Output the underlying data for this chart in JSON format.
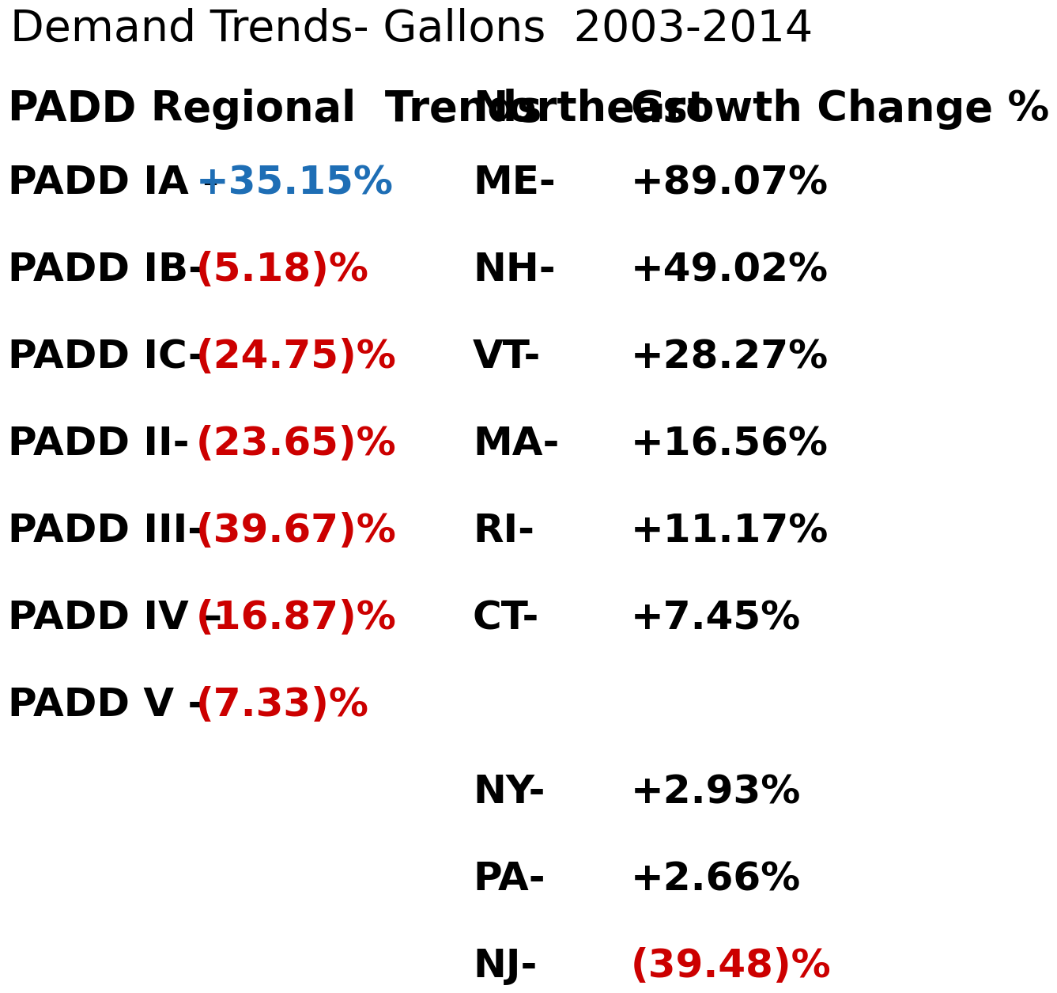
{
  "title": "Demand Trends- Gallons  2003-2014",
  "bg_color": "#ffffff",
  "left_header": "PADD Regional  Trends",
  "padd_rows": [
    {
      "label": "PADD IA - ",
      "value": "+35.15%",
      "value_color": "#1e6eb5"
    },
    {
      "label": "PADD IB-   ",
      "value": "(5.18)%",
      "value_color": "#cc0000"
    },
    {
      "label": "PADD IC-   ",
      "value": "(24.75)%",
      "value_color": "#cc0000"
    },
    {
      "label": "PADD II-   ",
      "value": "(23.65)%",
      "value_color": "#cc0000"
    },
    {
      "label": "PADD III-  ",
      "value": "(39.67)%",
      "value_color": "#cc0000"
    },
    {
      "label": "PADD IV – ",
      "value": "(16.87)%",
      "value_color": "#cc0000"
    },
    {
      "label": "PADD V -   ",
      "value": "(7.33)%",
      "value_color": "#cc0000"
    }
  ],
  "right_header1": "Northeast",
  "right_header2": "Growth Change %",
  "northeast_rows": [
    {
      "state": "ME-",
      "value": "+89.07%",
      "value_color": "#000000"
    },
    {
      "state": "NH-",
      "value": "+49.02%",
      "value_color": "#000000"
    },
    {
      "state": "VT-",
      "value": "+28.27%",
      "value_color": "#000000"
    },
    {
      "state": "MA-",
      "value": "+16.56%",
      "value_color": "#000000"
    },
    {
      "state": "RI-",
      "value": "+11.17%",
      "value_color": "#000000"
    },
    {
      "state": "CT-",
      "value": "+7.45%",
      "value_color": "#000000"
    }
  ],
  "other_rows": [
    {
      "state": "NY-",
      "value": "+2.93%",
      "value_color": "#000000"
    },
    {
      "state": "PA-",
      "value": "+2.66%",
      "value_color": "#000000"
    },
    {
      "state": "NJ-",
      "value": "(39.48)%",
      "value_color": "#cc0000"
    }
  ]
}
